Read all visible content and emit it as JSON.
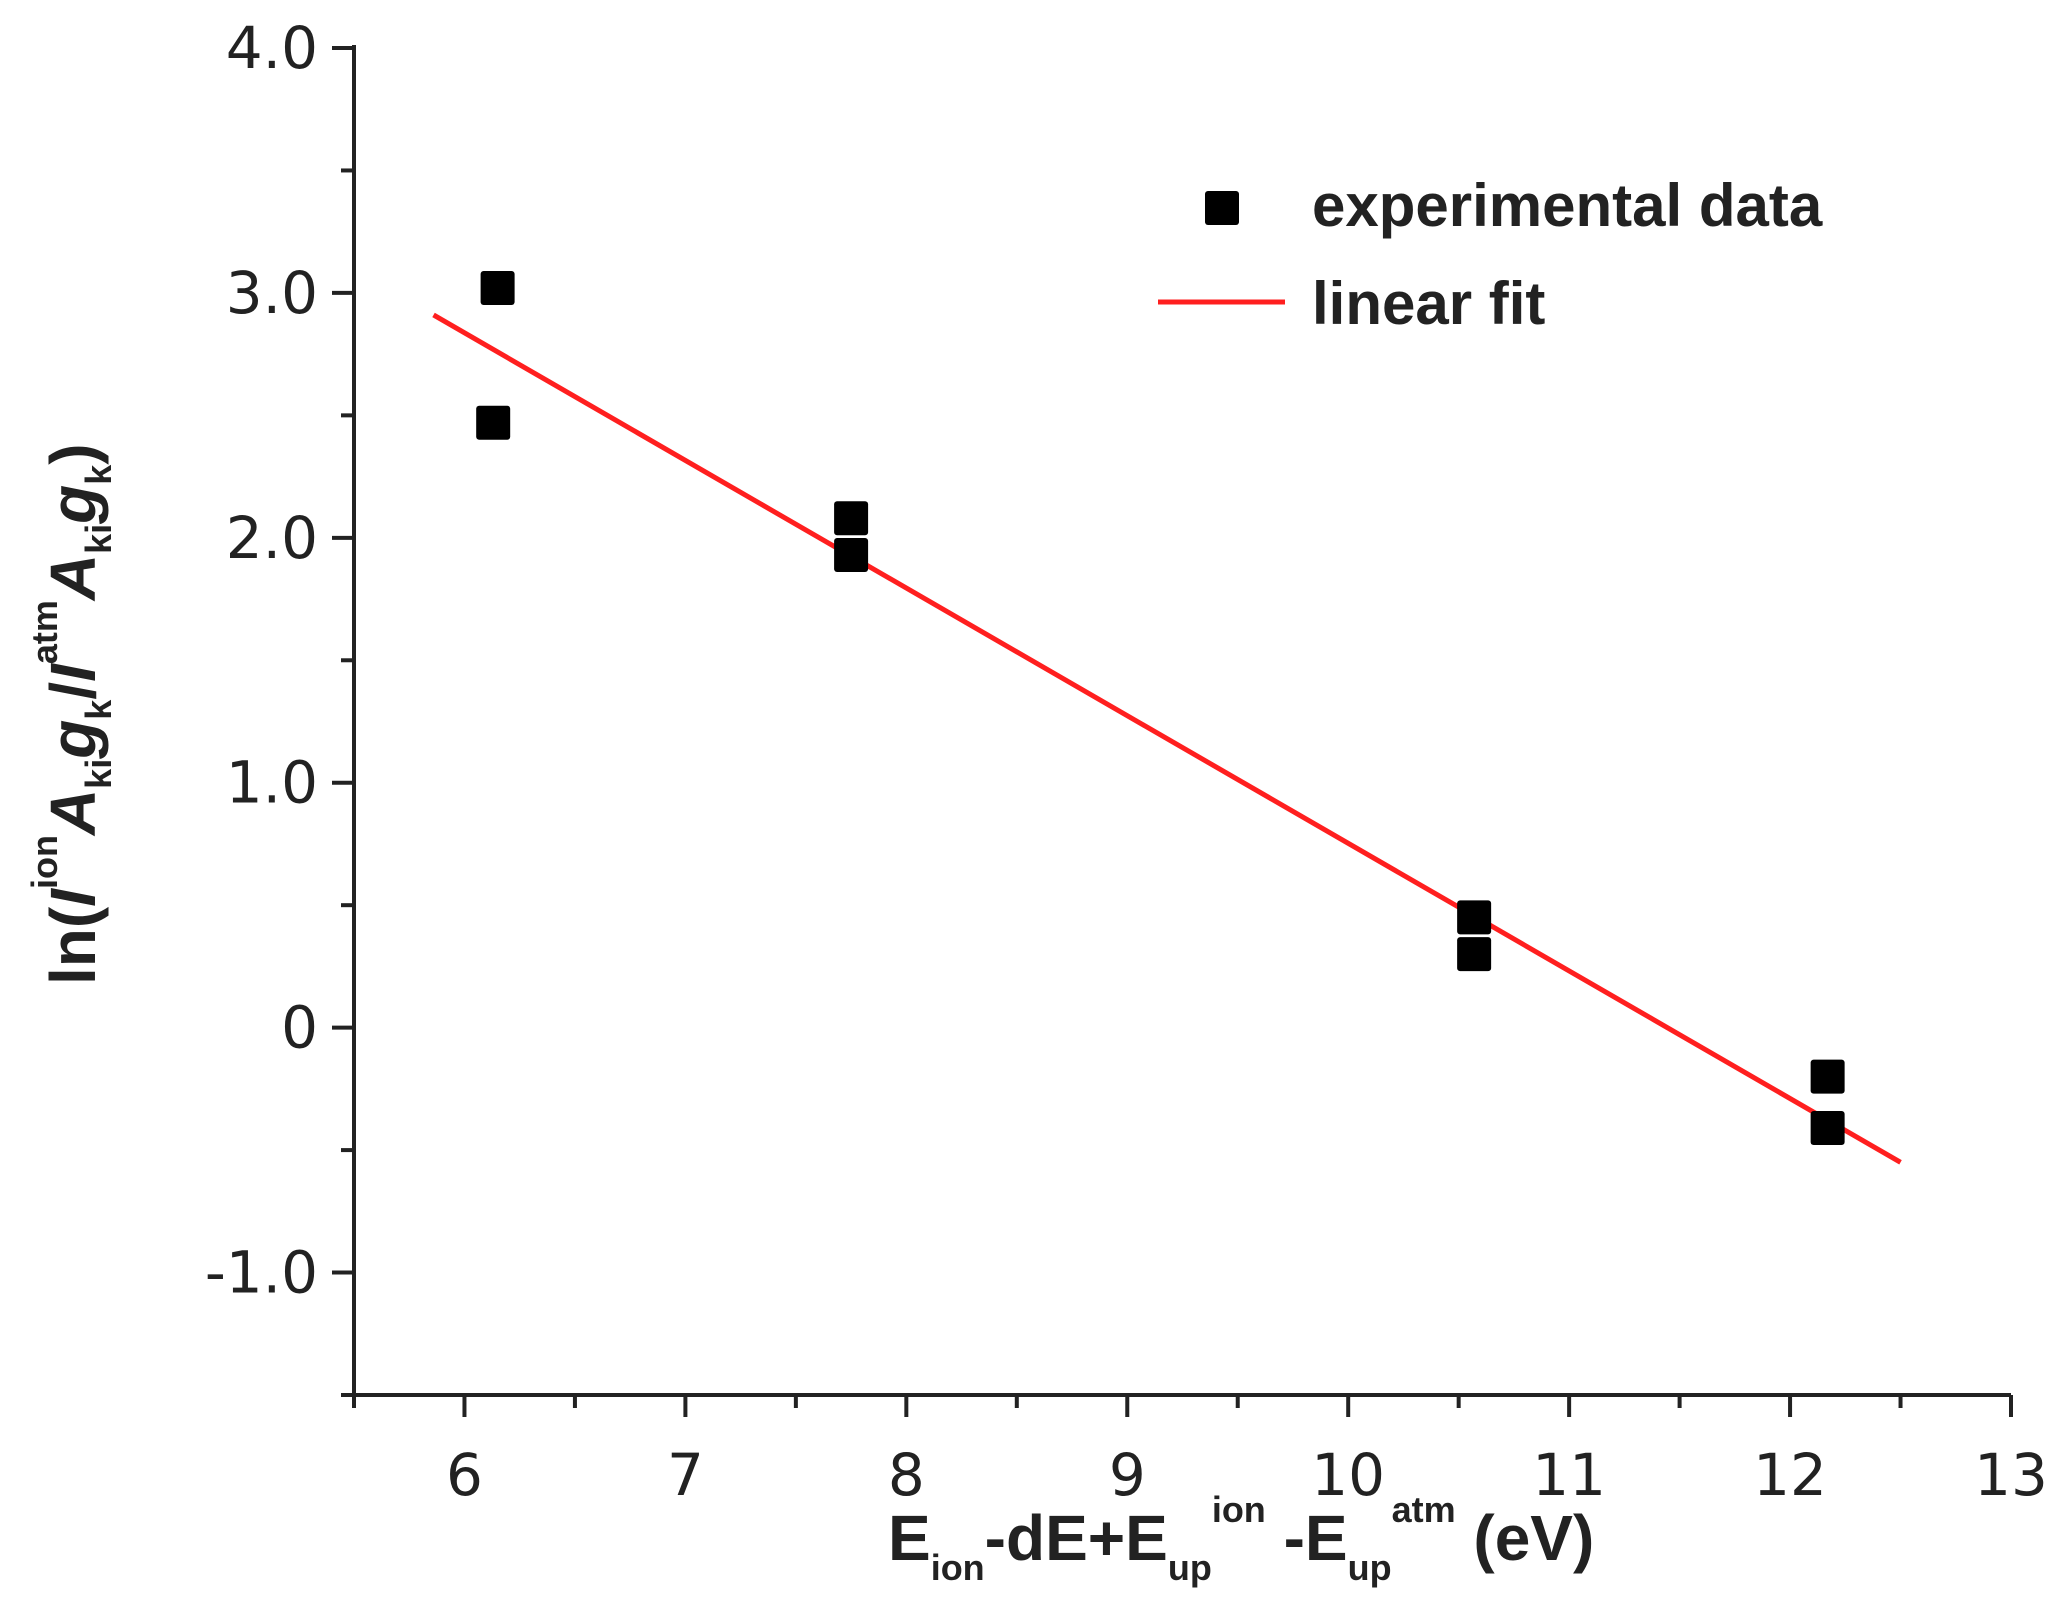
{
  "chart_data": {
    "type": "scatter",
    "title": "",
    "xlim": [
      5.5,
      13
    ],
    "ylim": [
      -1.5,
      4.0
    ],
    "x_ticks": [
      6,
      7,
      8,
      9,
      10,
      11,
      12,
      13
    ],
    "y_ticks": [
      -1.0,
      0,
      1.0,
      2.0,
      3.0,
      4.0
    ],
    "x_tick_labels": [
      "6",
      "7",
      "8",
      "9",
      "10",
      "11",
      "12",
      "13"
    ],
    "y_tick_labels": [
      "-1.0",
      "0",
      "1.0",
      "2.0",
      "3.0",
      "4.0"
    ],
    "x_minor_step": 0.5,
    "y_minor_step": 0.5,
    "xlabel": {
      "parts": [
        {
          "t": "E",
          "s": "n"
        },
        {
          "t": "ion",
          "s": "sub"
        },
        {
          "t": "-dE+E",
          "s": "n"
        },
        {
          "t": "up",
          "s": "sub"
        },
        {
          "t": "ion",
          "s": "sup"
        },
        {
          "t": " -E",
          "s": "n"
        },
        {
          "t": "up",
          "s": "sub"
        },
        {
          "t": "atm",
          "s": "sup"
        },
        {
          "t": "  (eV)",
          "s": "n"
        }
      ]
    },
    "ylabel": {
      "parts": [
        {
          "t": "ln(",
          "s": "n"
        },
        {
          "t": "I",
          "s": "i"
        },
        {
          "t": "ion",
          "s": "sup"
        },
        {
          "t": "A",
          "s": "i"
        },
        {
          "t": "ki",
          "s": "sub"
        },
        {
          "t": "g",
          "s": "i"
        },
        {
          "t": "k",
          "s": "sub"
        },
        {
          "t": "/",
          "s": "n"
        },
        {
          "t": "I",
          "s": "i"
        },
        {
          "t": "atm",
          "s": "sup"
        },
        {
          "t": "A",
          "s": "i"
        },
        {
          "t": "ki",
          "s": "sub"
        },
        {
          "t": "g",
          "s": "i"
        },
        {
          "t": "k",
          "s": "sub"
        },
        {
          "t": ")",
          "s": "n"
        }
      ]
    },
    "series": [
      {
        "name": "experimental data",
        "kind": "scatter",
        "marker": "square",
        "color": "#000000",
        "points": [
          [
            6.15,
            3.02
          ],
          [
            6.13,
            2.47
          ],
          [
            7.75,
            2.08
          ],
          [
            7.75,
            1.93
          ],
          [
            10.57,
            0.45
          ],
          [
            10.57,
            0.3
          ],
          [
            12.17,
            -0.2
          ],
          [
            12.17,
            -0.41
          ]
        ]
      },
      {
        "name": "linear fit",
        "kind": "line",
        "color": "#ff1f1f",
        "points": [
          [
            5.86,
            2.91
          ],
          [
            12.5,
            -0.55
          ]
        ]
      }
    ],
    "legend": {
      "position": "top-right",
      "items": [
        {
          "label": "experimental data",
          "symbol": "square",
          "color": "#000000"
        },
        {
          "label": "linear fit",
          "symbol": "line",
          "color": "#ff1f1f"
        }
      ]
    },
    "grid": false
  }
}
